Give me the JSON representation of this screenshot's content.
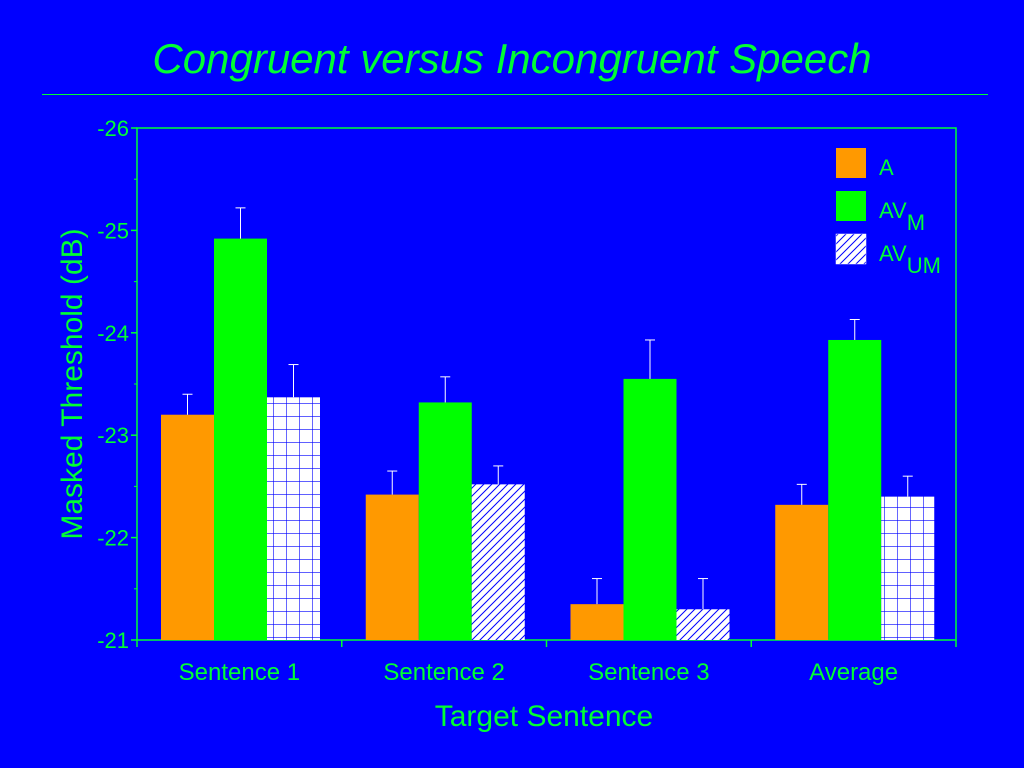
{
  "slide": {
    "title": "Congruent versus Incongruent Speech"
  },
  "colors": {
    "background": "#0000ff",
    "text": "#00ff33",
    "axis": "#00ff33",
    "series_A": "#ff9900",
    "series_AVM": "#00ff00",
    "series_AVUM_fill": "#ffffff",
    "series_AVUM_pattern": "#0000ff",
    "error_bar": "#ffffff"
  },
  "chart_data": {
    "type": "bar",
    "xlabel": "Target Sentence",
    "ylabel": "Masked Threshold (dB)",
    "ylim": [
      -21,
      -26
    ],
    "y_axis_inverted": true,
    "y_ticks": [
      "-26",
      "-25",
      "-24",
      "-23",
      "-22",
      "-21"
    ],
    "categories": [
      "Sentence 1",
      "Sentence 2",
      "Sentence 3",
      "Average"
    ],
    "legend_position": "top-right",
    "grid": false,
    "series": [
      {
        "name": "A",
        "legend_main": "A",
        "legend_sub": "",
        "pattern": "solid",
        "values": [
          -23.2,
          -22.42,
          -21.35,
          -22.32
        ],
        "errors": [
          0.2,
          0.23,
          0.25,
          0.2
        ]
      },
      {
        "name": "AVM",
        "legend_main": "AV",
        "legend_sub": "M",
        "pattern": "solid",
        "values": [
          -24.92,
          -23.32,
          -23.55,
          -23.93
        ],
        "errors": [
          0.3,
          0.25,
          0.38,
          0.2
        ]
      },
      {
        "name": "AVUM",
        "legend_main": "AV",
        "legend_sub": "UM",
        "pattern": "grid-hatch",
        "patterns_by_category": [
          "grid",
          "diagonal",
          "diagonal",
          "grid"
        ],
        "values": [
          -23.37,
          -22.52,
          -21.3,
          -22.4
        ],
        "errors": [
          0.32,
          0.18,
          0.3,
          0.2
        ]
      }
    ]
  }
}
